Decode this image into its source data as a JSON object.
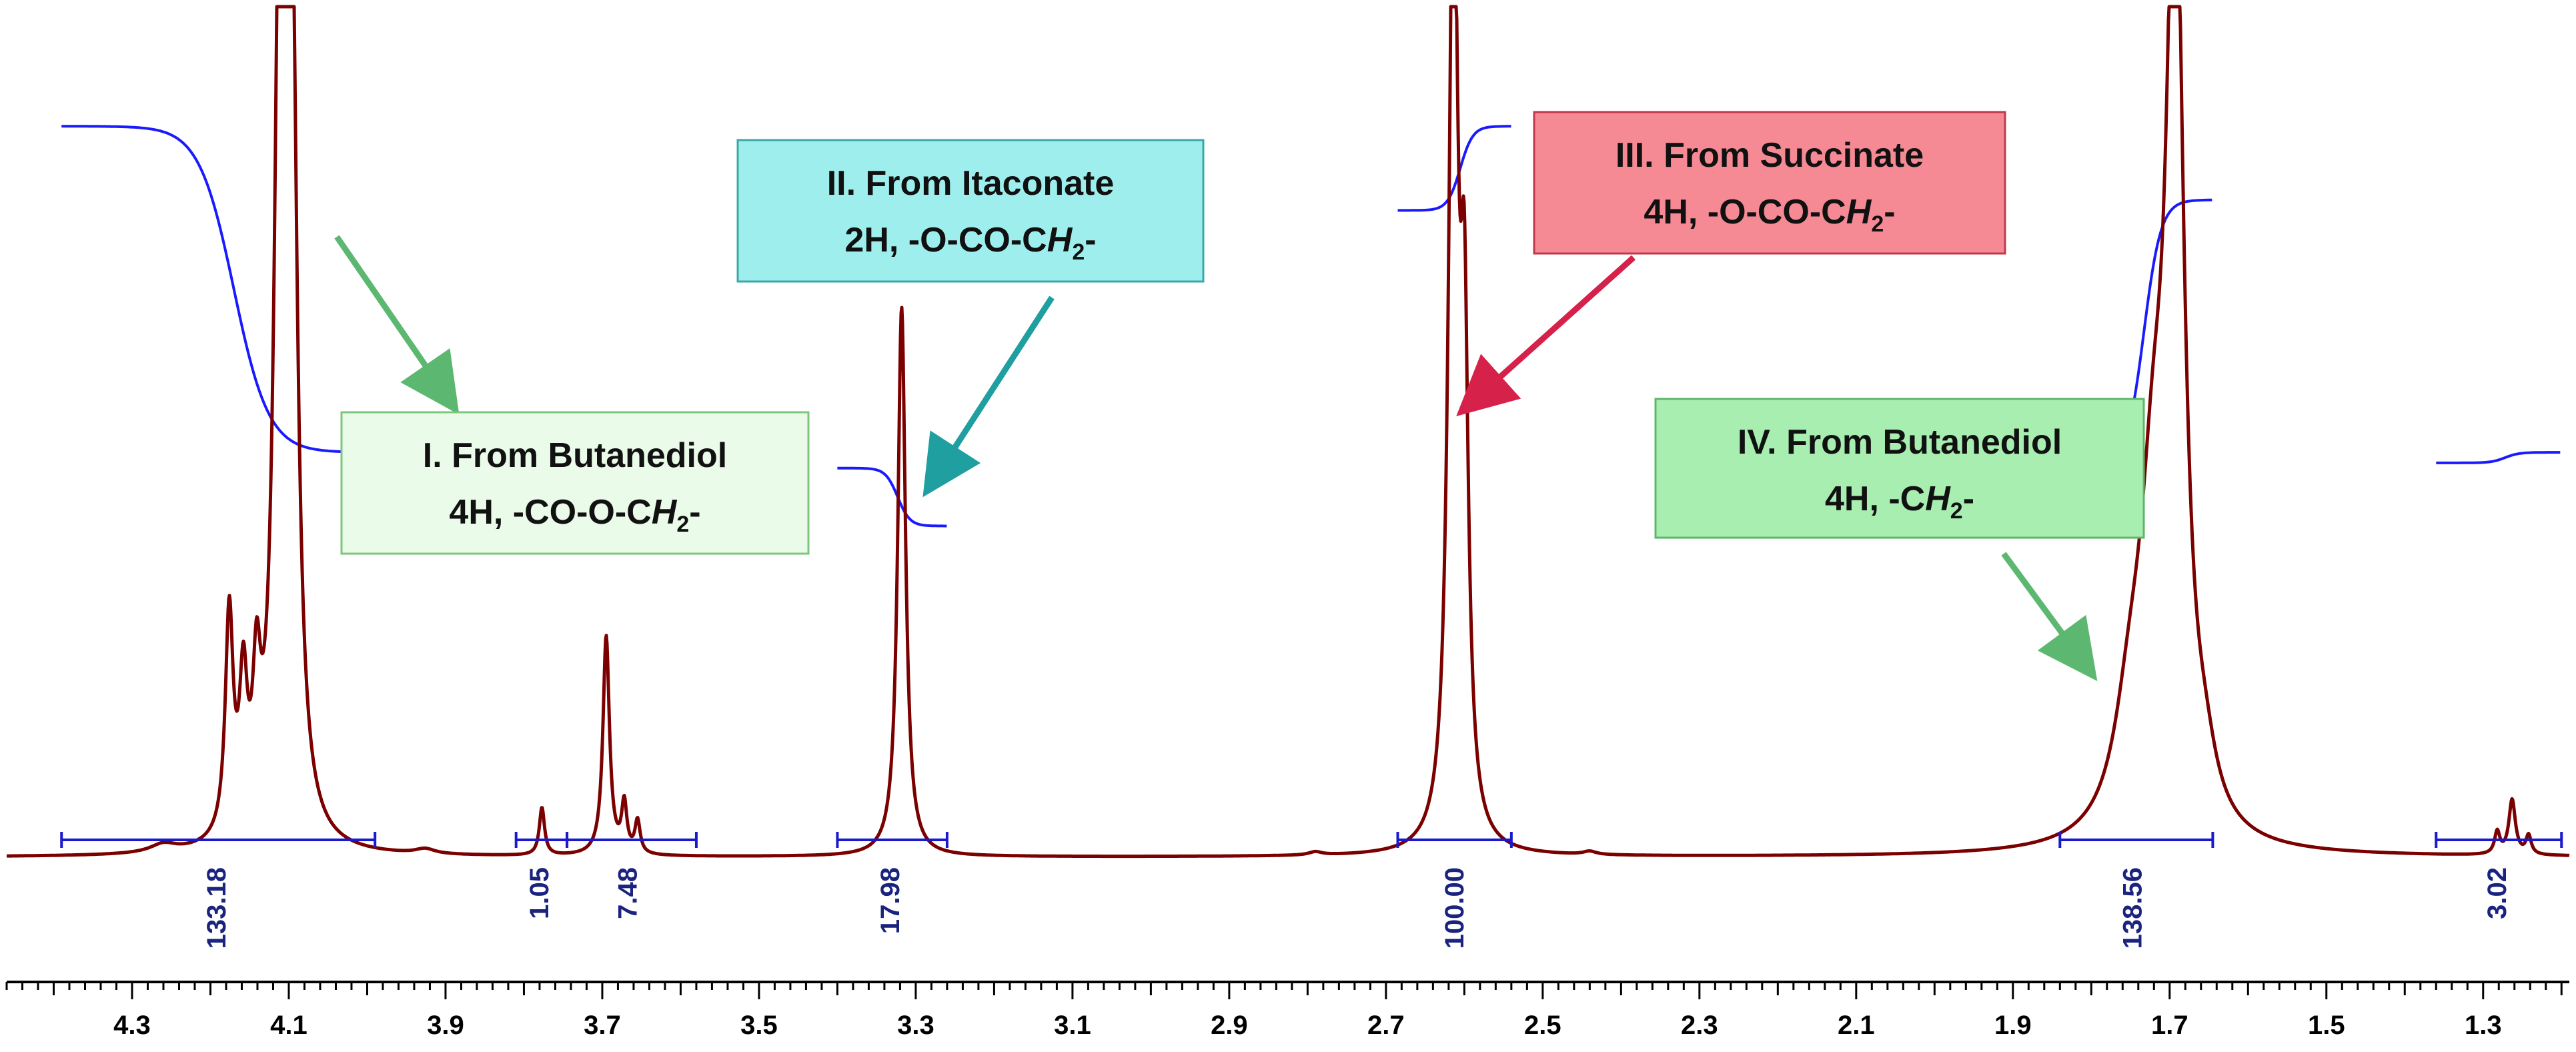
{
  "chart_data": {
    "type": "line",
    "title": "",
    "xlabel": "",
    "ylabel": "",
    "x_axis": {
      "reversed": true,
      "range": [
        4.46,
        1.19
      ],
      "major_ticks": [
        4.3,
        4.1,
        3.9,
        3.7,
        3.5,
        3.3,
        3.1,
        2.9,
        2.7,
        2.5,
        2.3,
        2.1,
        1.9,
        1.7,
        1.5,
        1.3
      ],
      "minor_tick_step": 0.02
    },
    "spectrum_color": "#7b0000",
    "integral_color": "#1a1aff",
    "integration_color": "#1a1acc",
    "peaks": [
      {
        "ppm": 4.111,
        "height": 1.15,
        "width": 0.008
      },
      {
        "ppm": 4.096,
        "height": 0.95,
        "width": 0.008
      },
      {
        "ppm": 4.176,
        "height": 0.27,
        "width": 0.006
      },
      {
        "ppm": 4.158,
        "height": 0.17,
        "width": 0.006
      },
      {
        "ppm": 4.141,
        "height": 0.16,
        "width": 0.006
      },
      {
        "ppm": 4.26,
        "height": 0.01,
        "width": 0.02
      },
      {
        "ppm": 3.926,
        "height": 0.006,
        "width": 0.015
      },
      {
        "ppm": 3.777,
        "height": 0.058,
        "width": 0.004
      },
      {
        "ppm": 3.695,
        "height": 0.267,
        "width": 0.005
      },
      {
        "ppm": 3.672,
        "height": 0.06,
        "width": 0.004
      },
      {
        "ppm": 3.655,
        "height": 0.04,
        "width": 0.004
      },
      {
        "ppm": 3.318,
        "height": 0.67,
        "width": 0.006
      },
      {
        "ppm": 2.614,
        "height": 1.2,
        "width": 0.007
      },
      {
        "ppm": 2.6,
        "height": 0.55,
        "width": 0.006
      },
      {
        "ppm": 1.693,
        "height": 1.12,
        "width": 0.013
      },
      {
        "ppm": 1.72,
        "height": 0.35,
        "width": 0.022
      },
      {
        "ppm": 1.75,
        "height": 0.12,
        "width": 0.025
      },
      {
        "ppm": 1.655,
        "height": 0.05,
        "width": 0.018
      },
      {
        "ppm": 1.263,
        "height": 0.067,
        "width": 0.005
      },
      {
        "ppm": 1.282,
        "height": 0.027,
        "width": 0.004
      },
      {
        "ppm": 1.242,
        "height": 0.023,
        "width": 0.004
      },
      {
        "ppm": 2.79,
        "height": 0.004,
        "width": 0.01
      },
      {
        "ppm": 2.44,
        "height": 0.004,
        "width": 0.01
      }
    ],
    "integrals": [
      {
        "start": 4.39,
        "end": 3.99,
        "value": "133.18",
        "label_ppm": 4.19,
        "curve_span": [
          0.12,
          0.43
        ]
      },
      {
        "start": 3.81,
        "end": 3.745,
        "value": "1.05",
        "label_ppm": 3.778,
        "curve_span": [
          0.425,
          0.43
        ]
      },
      {
        "start": 3.745,
        "end": 3.58,
        "value": "7.48",
        "label_ppm": 3.665,
        "curve_span": [
          0.43,
          0.445
        ]
      },
      {
        "start": 3.4,
        "end": 3.26,
        "value": "17.98",
        "label_ppm": 3.33,
        "curve_span": [
          0.445,
          0.5
        ]
      },
      {
        "start": 2.685,
        "end": 2.54,
        "value": "100.00",
        "label_ppm": 2.61,
        "curve_span": [
          0.2,
          0.12
        ]
      },
      {
        "start": 1.84,
        "end": 1.645,
        "value": "138.56",
        "label_ppm": 1.745,
        "curve_span": [
          0.44,
          0.19
        ]
      },
      {
        "start": 1.36,
        "end": 1.2,
        "value": "3.02",
        "label_ppm": 1.28,
        "curve_span": [
          0.44,
          0.43
        ]
      }
    ],
    "annotations": [
      {
        "lines": [
          "I. From Butanediol",
          "4H, -CO-O-C",
          "H",
          "2",
          "-"
        ],
        "fill": "#eafbea",
        "stroke": "#7cc77c"
      },
      {
        "lines": [
          "II. From Itaconate",
          "2H, -O-CO-C",
          "H",
          "2",
          "-"
        ],
        "fill": "#9eeeee",
        "stroke": "#3aa8a8"
      },
      {
        "lines": [
          "III. From Succinate",
          "4H, -O-CO-C",
          "H",
          "2",
          "-"
        ],
        "fill": "#f58a94",
        "stroke": "#c0394b"
      },
      {
        "lines": [
          "IV. From Butanediol",
          "4H, -C",
          "H",
          "2",
          "-"
        ],
        "fill": "#a8eeb0",
        "stroke": "#5fb56a"
      }
    ],
    "arrow_colors": [
      "#5cb870",
      "#1f9fa0",
      "#d6224a",
      "#5cb870"
    ]
  }
}
